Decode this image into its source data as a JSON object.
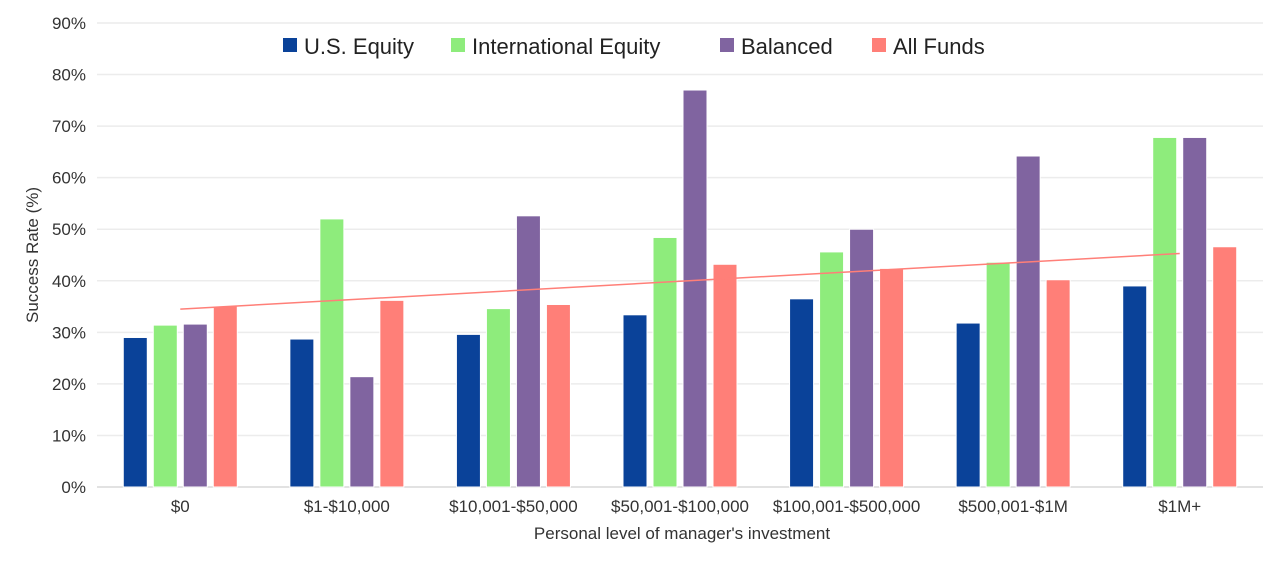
{
  "chart_data": {
    "type": "bar",
    "title": "",
    "xlabel": "Personal level of manager's investment",
    "ylabel": "Success Rate (%)",
    "ylim": [
      0,
      90
    ],
    "yticks": [
      "0%",
      "10%",
      "20%",
      "30%",
      "40%",
      "50%",
      "60%",
      "70%",
      "80%",
      "90%"
    ],
    "grid": true,
    "legend_position": "top",
    "categories": [
      "$0",
      "$1-$10,000",
      "$10,001-$50,000",
      "$50,001-$100,000",
      "$100,001-$500,000",
      "$500,001-$1M",
      "$1M+"
    ],
    "series": [
      {
        "name": "U.S. Equity",
        "color": "#0a4299",
        "values": [
          29.0,
          28.7,
          29.6,
          33.4,
          36.5,
          31.8,
          39.0
        ]
      },
      {
        "name": "International Equity",
        "color": "#8eec7c",
        "values": [
          31.4,
          52.0,
          34.6,
          48.4,
          45.6,
          43.6,
          67.8
        ]
      },
      {
        "name": "Balanced",
        "color": "#8064a0",
        "values": [
          31.6,
          21.4,
          52.6,
          77.0,
          50.0,
          64.2,
          67.8
        ]
      },
      {
        "name": "All Funds",
        "color": "#ff7f78",
        "values": [
          35.1,
          36.2,
          35.4,
          43.2,
          42.4,
          40.2,
          46.6
        ]
      }
    ],
    "trendline": {
      "series": "All Funds",
      "type": "linear",
      "start": 34.5,
      "end": 45.3,
      "color": "#ff7f78"
    }
  }
}
